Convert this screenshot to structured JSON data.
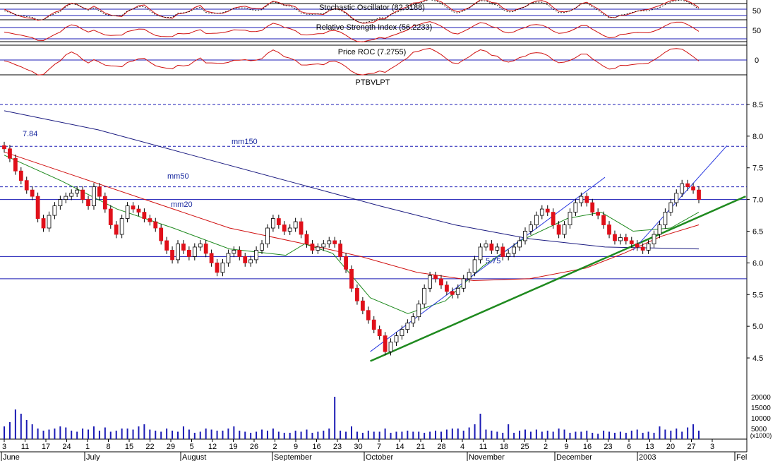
{
  "colors": {
    "frame": "#000000",
    "grid_blue": "#1a1ab4",
    "up_candle": "#ffffff",
    "down_candle": "#e0101a",
    "volume": "#1a1ab4",
    "ma20": "#1f8a1f",
    "ma50": "#d01010",
    "ma150": "#1a1a80",
    "trend_green": "#1f8a1f",
    "trend_blue": "#2a3ae0",
    "osc_red": "#d01010"
  },
  "panels": {
    "stochastic": {
      "title": "Stochastic Oscillator (82.3188)",
      "axis_label": "50"
    },
    "rsi": {
      "title": "Relative Strength Index (56.2233)",
      "axis_label": "50"
    },
    "roc": {
      "title": "Price ROC (7.2755)",
      "axis_label": "0"
    },
    "price": {
      "title": "PTBVLPT"
    }
  },
  "annotations": {
    "ma150": "mm150",
    "ma50": "mm50",
    "ma20": "mm20",
    "high_label": "7.84",
    "low_label": "5.75"
  },
  "volume_axis": {
    "ticks": [
      "20000",
      "15000",
      "10000",
      "5000"
    ],
    "unit": "(x1000)"
  },
  "x_axis": {
    "day_labels": [
      "3",
      "11",
      "17",
      "24",
      "1",
      "8",
      "15",
      "22",
      "29",
      "5",
      "12",
      "19",
      "26",
      "2",
      "9",
      "16",
      "23",
      "30",
      "7",
      "14",
      "21",
      "28",
      "4",
      "11",
      "18",
      "25",
      "2",
      "9",
      "16",
      "23",
      "6",
      "13",
      "20",
      "27",
      "3"
    ],
    "month_labels": [
      "June",
      "July",
      "August",
      "September",
      "October",
      "November",
      "December",
      "2003",
      "Fel"
    ]
  },
  "chart_data": {
    "type": "candlestick",
    "title": "PTBVLPT",
    "ylim": [
      4.3,
      8.7
    ],
    "y_ticks": [
      4.5,
      5.0,
      5.5,
      6.0,
      6.5,
      7.0,
      7.5,
      8.0,
      8.5
    ],
    "series": [
      {
        "name": "mm150",
        "trend": [
          [
            0,
            8.4
          ],
          [
            50,
            8.1
          ],
          [
            100,
            7.7
          ],
          [
            150,
            7.3
          ],
          [
            200,
            6.9
          ],
          [
            240,
            6.6
          ],
          [
            280,
            6.38
          ],
          [
            320,
            6.25
          ],
          [
            370,
            6.22
          ]
        ]
      },
      {
        "name": "mm50",
        "trend": [
          [
            0,
            7.75
          ],
          [
            40,
            7.35
          ],
          [
            80,
            6.95
          ],
          [
            120,
            6.55
          ],
          [
            160,
            6.3
          ],
          [
            190,
            6.1
          ],
          [
            220,
            5.85
          ],
          [
            250,
            5.72
          ],
          [
            280,
            5.75
          ],
          [
            310,
            5.92
          ],
          [
            330,
            6.15
          ],
          [
            350,
            6.42
          ],
          [
            370,
            6.6
          ]
        ]
      },
      {
        "name": "mm20",
        "trend": [
          [
            0,
            7.7
          ],
          [
            30,
            7.3
          ],
          [
            60,
            6.85
          ],
          [
            90,
            6.55
          ],
          [
            120,
            6.22
          ],
          [
            150,
            6.12
          ],
          [
            160,
            6.3
          ],
          [
            175,
            6.15
          ],
          [
            195,
            5.45
          ],
          [
            215,
            5.2
          ],
          [
            235,
            5.4
          ],
          [
            255,
            5.95
          ],
          [
            275,
            6.35
          ],
          [
            300,
            6.7
          ],
          [
            318,
            6.8
          ],
          [
            335,
            6.5
          ],
          [
            355,
            6.55
          ],
          [
            370,
            6.8
          ]
        ]
      }
    ],
    "horizontal_levels": [
      8.5,
      7.84,
      7.2,
      7.0,
      6.1,
      5.75
    ],
    "trendlines": [
      {
        "name": "green-support",
        "from": [
          195,
          4.45
        ],
        "to": [
          395,
          7.05
        ]
      },
      {
        "name": "blue-channel",
        "from": [
          195,
          4.6
        ],
        "to": [
          320,
          7.35
        ]
      },
      {
        "name": "blue-channel-2",
        "from": [
          335,
          6.2
        ],
        "to": [
          385,
          7.85
        ]
      }
    ],
    "candles_close": [
      7.8,
      7.65,
      7.45,
      7.3,
      7.15,
      7.05,
      6.7,
      6.55,
      6.75,
      6.9,
      7.0,
      7.05,
      7.1,
      7.15,
      7.0,
      6.9,
      7.2,
      7.05,
      6.85,
      6.6,
      6.45,
      6.7,
      6.9,
      6.85,
      6.8,
      6.7,
      6.65,
      6.55,
      6.35,
      6.2,
      6.05,
      6.3,
      6.2,
      6.1,
      6.25,
      6.3,
      6.15,
      6.0,
      5.85,
      6.0,
      6.15,
      6.2,
      6.1,
      6.0,
      6.05,
      6.2,
      6.3,
      6.55,
      6.7,
      6.6,
      6.5,
      6.55,
      6.65,
      6.45,
      6.3,
      6.2,
      6.25,
      6.3,
      6.35,
      6.3,
      6.1,
      5.9,
      5.6,
      5.4,
      5.25,
      5.1,
      4.95,
      4.85,
      4.6,
      4.75,
      4.85,
      4.95,
      5.05,
      5.15,
      5.35,
      5.6,
      5.8,
      5.75,
      5.65,
      5.55,
      5.5,
      5.6,
      5.75,
      5.85,
      6.05,
      6.25,
      6.3,
      6.2,
      6.25,
      6.1,
      6.15,
      6.25,
      6.35,
      6.5,
      6.6,
      6.75,
      6.85,
      6.8,
      6.6,
      6.45,
      6.6,
      6.8,
      6.95,
      7.05,
      6.95,
      6.8,
      6.75,
      6.6,
      6.45,
      6.35,
      6.4,
      6.35,
      6.3,
      6.25,
      6.2,
      6.3,
      6.45,
      6.6,
      6.8,
      6.95,
      7.1,
      7.25,
      7.2,
      7.15,
      7.0
    ],
    "volume": [
      6000,
      8000,
      14000,
      12000,
      9000,
      7000,
      5000,
      4000,
      4500,
      5000,
      6000,
      5500,
      4000,
      3500,
      5000,
      4500,
      6000,
      4000,
      5500,
      3500,
      4000,
      5000,
      5000,
      4500,
      6000,
      7000,
      4500,
      4000,
      3500,
      5000,
      4000,
      3500,
      6000,
      4500,
      3000,
      3500,
      5000,
      4500,
      4000,
      4000,
      5000,
      6000,
      4000,
      3500,
      3000,
      3500,
      4500,
      4000,
      5000,
      3500,
      3000,
      3000,
      4000,
      3500,
      4500,
      3000,
      3500,
      4000,
      5000,
      20000,
      4000,
      3500,
      6000,
      3500,
      3000,
      4000,
      3500,
      3500,
      5000,
      3000,
      3500,
      3500,
      4000,
      3500,
      3500,
      3000,
      3500,
      4000,
      3500,
      4500,
      5000,
      5000,
      4000,
      5500,
      7000,
      12000,
      4500,
      4000,
      3500,
      3000,
      7000,
      3000,
      4000,
      4500,
      3500,
      4500,
      3500,
      4000,
      3500,
      5000,
      4500,
      3000,
      3500,
      3500,
      4000,
      3000,
      2500,
      4000,
      3500,
      3000,
      3500,
      3000,
      4000,
      4500,
      3000,
      3500,
      3000,
      6000,
      4500,
      4000,
      5000,
      3500,
      5500,
      7000,
      4000
    ]
  }
}
